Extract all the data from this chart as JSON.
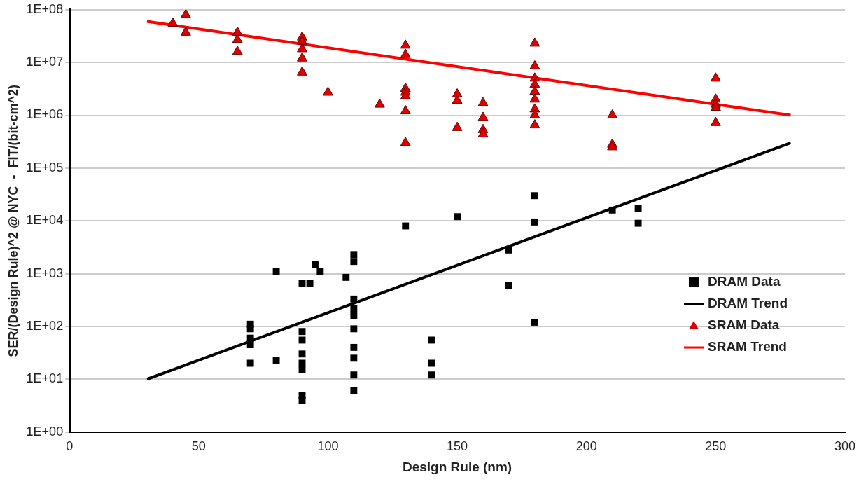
{
  "chart_data": {
    "type": "scatter",
    "xlabel": "Design Rule (nm)",
    "ylabel": "SER/(Design Rule)^2 @ NYC  -  FIT/(bit-cm^2)",
    "log": "y",
    "grid": "y",
    "legend": "right",
    "xlim": [
      0,
      300
    ],
    "xticks": [
      0,
      50,
      100,
      150,
      200,
      250,
      300
    ],
    "ylim": [
      1,
      100000000
    ],
    "yticks": [
      {
        "value": 1,
        "label": "1E+00"
      },
      {
        "value": 10,
        "label": "1E+01"
      },
      {
        "value": 100,
        "label": "1E+02"
      },
      {
        "value": 1000,
        "label": "1E+03"
      },
      {
        "value": 10000,
        "label": "1E+04"
      },
      {
        "value": 100000,
        "label": "1E+05"
      },
      {
        "value": 1000000,
        "label": "1E+06"
      },
      {
        "value": 10000000,
        "label": "1E+07"
      },
      {
        "value": 100000000,
        "label": "1E+08"
      }
    ],
    "series": [
      {
        "name": "DRAM Data",
        "marker": "square",
        "color": "#000000",
        "x": [
          70,
          70,
          70,
          70,
          70,
          80,
          80,
          90,
          90,
          90,
          90,
          90,
          90,
          90,
          90,
          93,
          95,
          97,
          107,
          110,
          110,
          110,
          110,
          110,
          110,
          110,
          110,
          110,
          110,
          130,
          140,
          140,
          140,
          150,
          170,
          170,
          180,
          180,
          180,
          210,
          220,
          220
        ],
        "values": [
          110,
          90,
          60,
          45,
          20,
          1100,
          23,
          650,
          80,
          55,
          30,
          20,
          15,
          5,
          4,
          650,
          1500,
          1100,
          850,
          2300,
          1700,
          330,
          220,
          160,
          90,
          40,
          25,
          12,
          6,
          8000,
          55,
          20,
          12,
          12000,
          2800,
          600,
          30000,
          9500,
          120,
          16000,
          17000,
          9000
        ]
      },
      {
        "name": "DRAM Trend",
        "type": "line",
        "marker": "none",
        "line_style": "solid",
        "color": "#000000",
        "x": [
          30,
          279
        ],
        "values": [
          10,
          300000
        ]
      },
      {
        "name": "SRAM Data",
        "marker": "triangle",
        "color": "#e00000",
        "x": [
          40,
          45,
          45,
          65,
          65,
          65,
          90,
          90,
          90,
          90,
          90,
          100,
          120,
          130,
          130,
          130,
          130,
          130,
          130,
          130,
          150,
          150,
          150,
          160,
          160,
          160,
          160,
          180,
          180,
          180,
          180,
          180,
          180,
          180,
          180,
          180,
          210,
          210,
          210,
          250,
          250,
          250,
          250,
          250
        ],
        "values": [
          55000000,
          80000000,
          37000000,
          37000000,
          27000000,
          16000000,
          30000000,
          25000000,
          18000000,
          12000000,
          6500000,
          2700000,
          1600000,
          21000000,
          14000000,
          3200000,
          2700000,
          2300000,
          1200000,
          300000,
          2500000,
          1900000,
          580000,
          1700000,
          900000,
          530000,
          440000,
          23000000,
          8500000,
          5000000,
          3800000,
          2800000,
          2000000,
          1300000,
          1000000,
          650000,
          1000000,
          280000,
          250000,
          5000000,
          2000000,
          1600000,
          1400000,
          720000
        ]
      },
      {
        "name": "SRAM Trend",
        "type": "line",
        "marker": "none",
        "line_style": "solid",
        "color": "#ff0000",
        "x": [
          30,
          279
        ],
        "values": [
          60000000,
          1000000
        ]
      }
    ]
  }
}
